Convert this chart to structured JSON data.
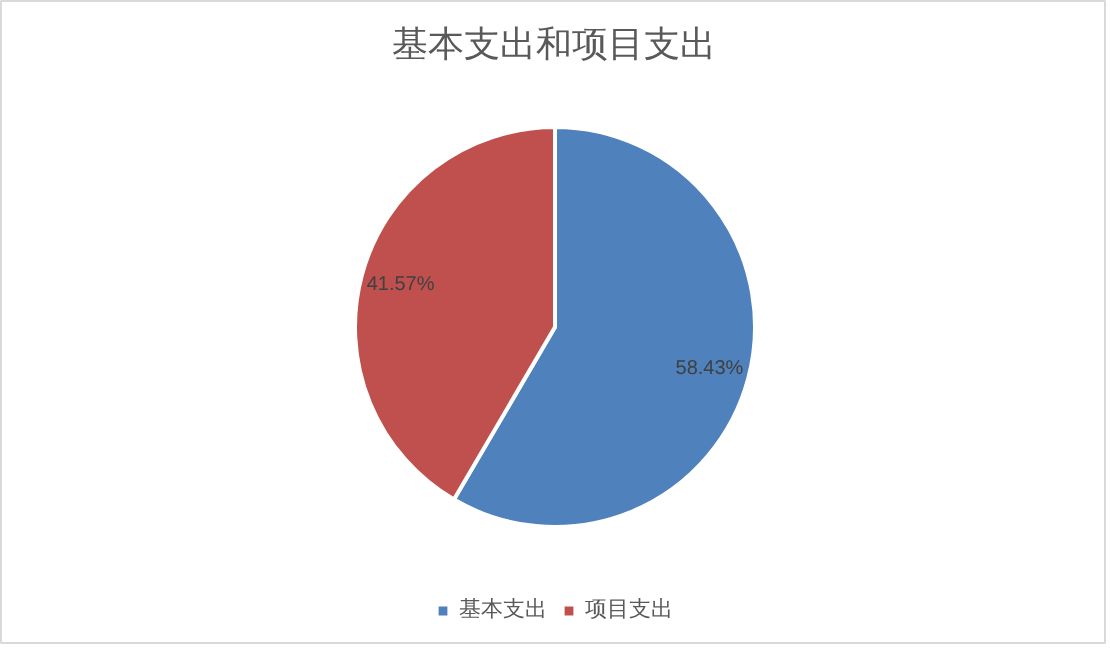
{
  "chart_data": {
    "type": "pie",
    "title": "基本支出和项目支出",
    "categories": [
      "基本支出",
      "项目支出"
    ],
    "values": [
      58.43,
      41.57
    ],
    "colors": [
      "#4f81bd",
      "#c0504d"
    ],
    "value_labels": [
      "58.43%",
      "41.57%"
    ],
    "legend": "bottom"
  }
}
